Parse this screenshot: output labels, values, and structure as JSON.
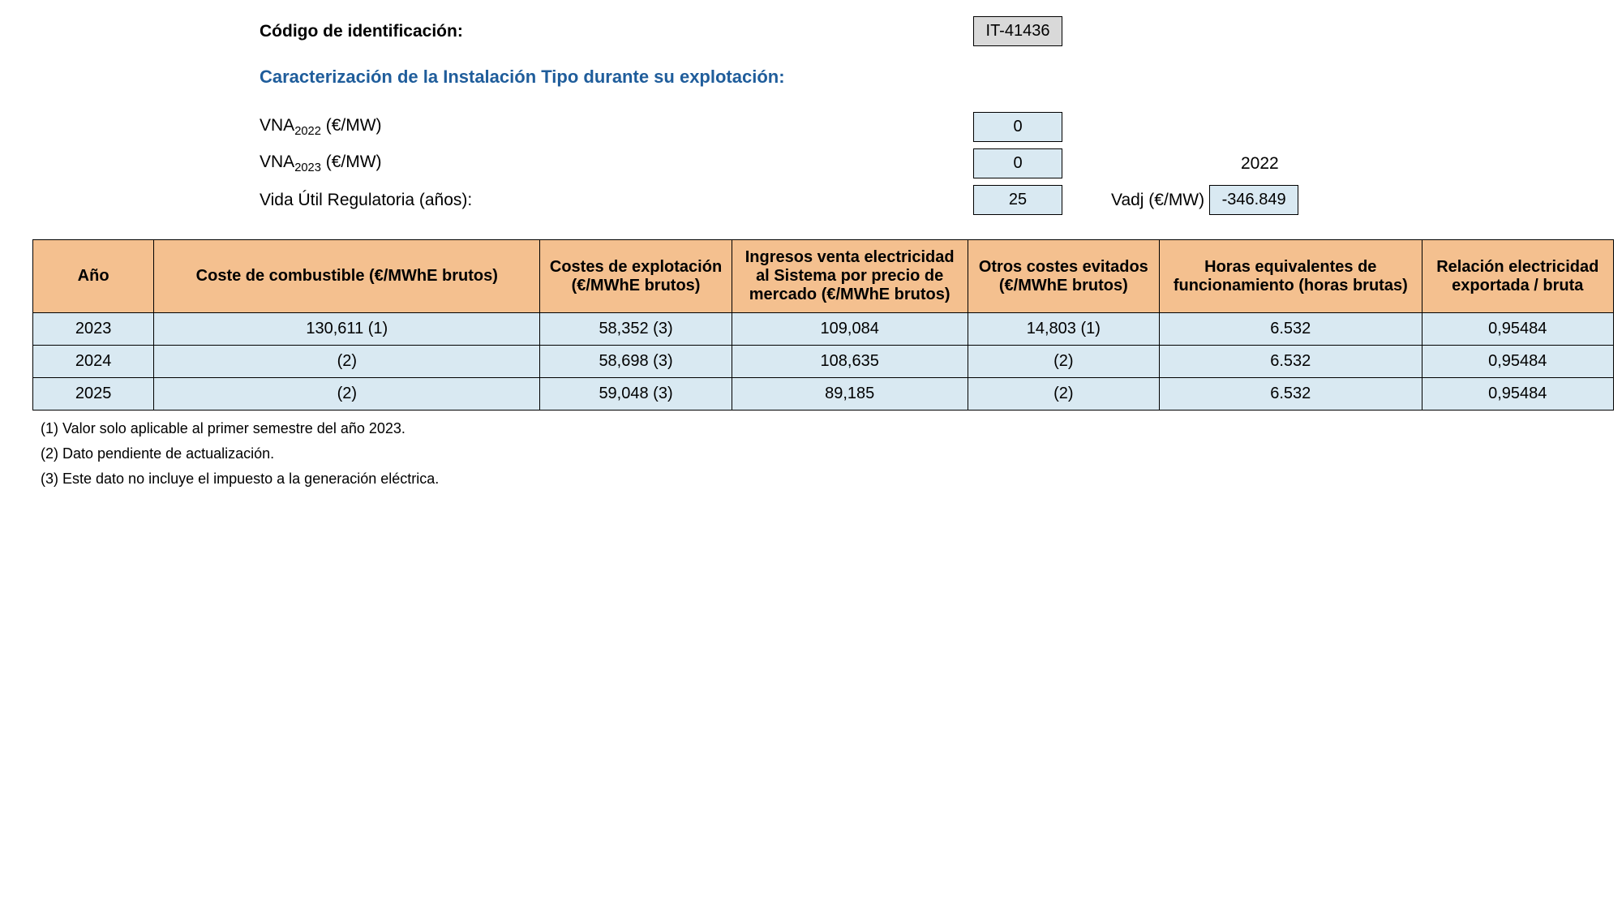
{
  "header": {
    "id_label": "Código de identificación:",
    "id_value": "IT-41436",
    "char_label": "Caracterización de la Instalación Tipo durante su explotación:",
    "vna2022_label_pre": "VNA",
    "vna2022_sub": "2022",
    "vna2022_label_post": " (€/MW)",
    "vna2022_value": "0",
    "vna2023_label_pre": "VNA",
    "vna2023_sub": "2023",
    "vna2023_label_post": " (€/MW)",
    "vna2023_value": "0",
    "vna2023_after": "2022",
    "vida_label": "Vida Útil Regulatoria (años):",
    "vida_value": "25",
    "vadj_label": "Vadj (€/MW)",
    "vadj_value": "-346.849"
  },
  "table": {
    "columns": {
      "ano": "Año",
      "combustible": "Coste de combustible (€/MWhE brutos)",
      "explotacion": "Costes de explotación (€/MWhE brutos)",
      "ingresos": "Ingresos venta electricidad al Sistema por precio de mercado (€/MWhE brutos)",
      "otros": "Otros costes evitados (€/MWhE brutos)",
      "horas": "Horas equivalentes de funcionamiento (horas brutas)",
      "relacion": "Relación electricidad exportada / bruta"
    },
    "rows": [
      {
        "ano": "2023",
        "combustible": "130,611 (1)",
        "explotacion": "58,352 (3)",
        "ingresos": "109,084",
        "otros": "14,803 (1)",
        "horas": "6.532",
        "relacion": "0,95484"
      },
      {
        "ano": "2024",
        "combustible": "(2)",
        "explotacion": "58,698 (3)",
        "ingresos": "108,635",
        "otros": "(2)",
        "horas": "6.532",
        "relacion": "0,95484"
      },
      {
        "ano": "2025",
        "combustible": "(2)",
        "explotacion": "59,048 (3)",
        "ingresos": "89,185",
        "otros": "(2)",
        "horas": "6.532",
        "relacion": "0,95484"
      }
    ],
    "header_bg": "#f4c08f",
    "cell_bg": "#d9e9f2",
    "border_color": "#000000"
  },
  "footnotes": {
    "n1": "(1) Valor solo aplicable al primer semestre del año 2023.",
    "n2": "(2) Dato pendiente de actualización.",
    "n3": "(3) Este dato no incluye el impuesto a la generación eléctrica."
  }
}
